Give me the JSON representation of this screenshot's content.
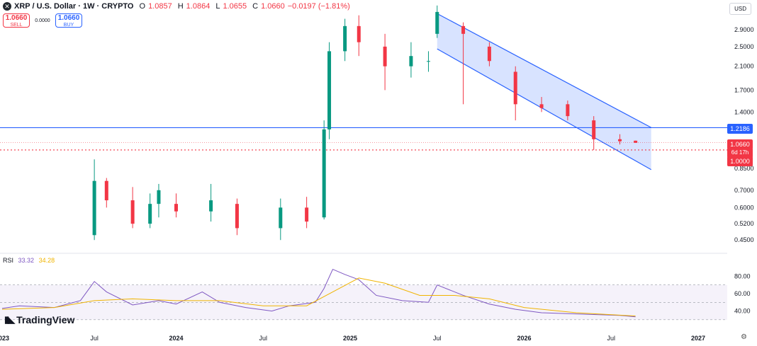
{
  "header": {
    "symbol": "XRP / U.S. Dollar · 1W · CRYPTO",
    "logo": "✕",
    "o_label": "O",
    "o_value": "1.0857",
    "h_label": "H",
    "h_value": "1.0864",
    "l_label": "L",
    "l_value": "1.0655",
    "c_label": "C",
    "c_value": "1.0660",
    "change": "−0.0197 (−1.81%)"
  },
  "trade": {
    "sell_price": "1.0660",
    "sell_label": "SELL",
    "spread": "0.0000",
    "buy_price": "1.0660",
    "buy_label": "BUY"
  },
  "currency": "USD",
  "rsi": {
    "label": "RSI",
    "value": "33.32",
    "ma_value": "34.28",
    "axis": [
      "80.00",
      "60.00",
      "40.00"
    ]
  },
  "price_badges": {
    "line": "1.2186",
    "last": "1.0660",
    "countdown": "6d 17h",
    "level": "1.0000"
  },
  "brand": "TradingView",
  "colors": {
    "up": "#089981",
    "down": "#f23645",
    "rsi": "#7e57c2",
    "rsi_ma": "#f0b400",
    "line": "#2962ff"
  },
  "chart_data": {
    "type": "candlestick",
    "y_scale": "log",
    "y_ticks": [
      "2.9000",
      "2.5000",
      "2.1000",
      "1.7000",
      "1.4000",
      "0.8500",
      "0.7000",
      "0.6000",
      "0.5200",
      "0.4500"
    ],
    "x_ticks": [
      "2023",
      "Jul",
      "2024",
      "Jul",
      "2025",
      "Jul",
      "2026",
      "Jul",
      "2027"
    ],
    "horizontal_line": 1.2186,
    "dotted_level": 1.0,
    "last_price": 1.066,
    "channel": {
      "upper": [
        [
          2025.5,
          3.35
        ],
        [
          2026.73,
          1.22
        ]
      ],
      "lower": [
        [
          2025.5,
          2.45
        ],
        [
          2026.73,
          0.84
        ]
      ]
    },
    "candles": [
      [
        2023.53,
        0.47,
        0.92,
        0.45,
        0.76
      ],
      [
        2023.6,
        0.76,
        0.78,
        0.6,
        0.64
      ],
      [
        2023.75,
        0.64,
        0.72,
        0.5,
        0.52
      ],
      [
        2023.85,
        0.52,
        0.68,
        0.5,
        0.62
      ],
      [
        2023.9,
        0.62,
        0.74,
        0.55,
        0.7
      ],
      [
        2024.0,
        0.62,
        0.68,
        0.55,
        0.58
      ],
      [
        2024.2,
        0.58,
        0.74,
        0.53,
        0.64
      ],
      [
        2024.35,
        0.62,
        0.65,
        0.47,
        0.5
      ],
      [
        2024.6,
        0.5,
        0.65,
        0.45,
        0.6
      ],
      [
        2024.75,
        0.6,
        0.66,
        0.5,
        0.53
      ],
      [
        2024.85,
        0.55,
        1.3,
        0.54,
        1.2
      ],
      [
        2024.88,
        1.2,
        2.6,
        1.1,
        2.4
      ],
      [
        2024.97,
        2.4,
        3.2,
        2.2,
        3.0
      ],
      [
        2025.05,
        3.0,
        3.3,
        2.3,
        2.6
      ],
      [
        2025.2,
        2.5,
        2.8,
        1.7,
        2.1
      ],
      [
        2025.35,
        2.1,
        2.6,
        1.9,
        2.3
      ],
      [
        2025.45,
        2.2,
        2.4,
        2.0,
        2.2
      ],
      [
        2025.5,
        2.8,
        3.6,
        2.7,
        3.4
      ],
      [
        2025.65,
        3.0,
        3.1,
        1.5,
        2.8
      ],
      [
        2025.8,
        2.5,
        2.6,
        2.1,
        2.2
      ],
      [
        2025.95,
        2.0,
        2.1,
        1.3,
        1.5
      ],
      [
        2026.1,
        1.5,
        1.6,
        1.4,
        1.45
      ],
      [
        2026.25,
        1.5,
        1.55,
        1.3,
        1.35
      ],
      [
        2026.4,
        1.3,
        1.35,
        1.0,
        1.1
      ],
      [
        2026.55,
        1.1,
        1.15,
        1.05,
        1.08
      ],
      [
        2026.64,
        1.0857,
        1.0864,
        1.0655,
        1.066
      ]
    ],
    "rsi_points": [
      [
        2023.0,
        43
      ],
      [
        2023.1,
        46
      ],
      [
        2023.3,
        44
      ],
      [
        2023.45,
        52
      ],
      [
        2023.53,
        74
      ],
      [
        2023.6,
        62
      ],
      [
        2023.75,
        47
      ],
      [
        2023.9,
        52
      ],
      [
        2024.0,
        48
      ],
      [
        2024.15,
        62
      ],
      [
        2024.25,
        50
      ],
      [
        2024.4,
        44
      ],
      [
        2024.55,
        40
      ],
      [
        2024.65,
        46
      ],
      [
        2024.8,
        50
      ],
      [
        2024.85,
        66
      ],
      [
        2024.9,
        88
      ],
      [
        2024.97,
        82
      ],
      [
        2025.05,
        76
      ],
      [
        2025.15,
        58
      ],
      [
        2025.3,
        52
      ],
      [
        2025.45,
        50
      ],
      [
        2025.5,
        70
      ],
      [
        2025.65,
        58
      ],
      [
        2025.8,
        48
      ],
      [
        2025.95,
        42
      ],
      [
        2026.1,
        38
      ],
      [
        2026.25,
        37
      ],
      [
        2026.4,
        36
      ],
      [
        2026.55,
        35
      ],
      [
        2026.64,
        33.32
      ]
    ],
    "rsi_ma_points": [
      [
        2023.0,
        42
      ],
      [
        2023.3,
        44
      ],
      [
        2023.53,
        52
      ],
      [
        2023.75,
        54
      ],
      [
        2024.0,
        52
      ],
      [
        2024.25,
        52
      ],
      [
        2024.5,
        46
      ],
      [
        2024.75,
        46
      ],
      [
        2024.9,
        62
      ],
      [
        2025.05,
        78
      ],
      [
        2025.2,
        72
      ],
      [
        2025.4,
        58
      ],
      [
        2025.6,
        58
      ],
      [
        2025.8,
        54
      ],
      [
        2026.0,
        44
      ],
      [
        2026.3,
        38
      ],
      [
        2026.64,
        34.28
      ]
    ]
  }
}
